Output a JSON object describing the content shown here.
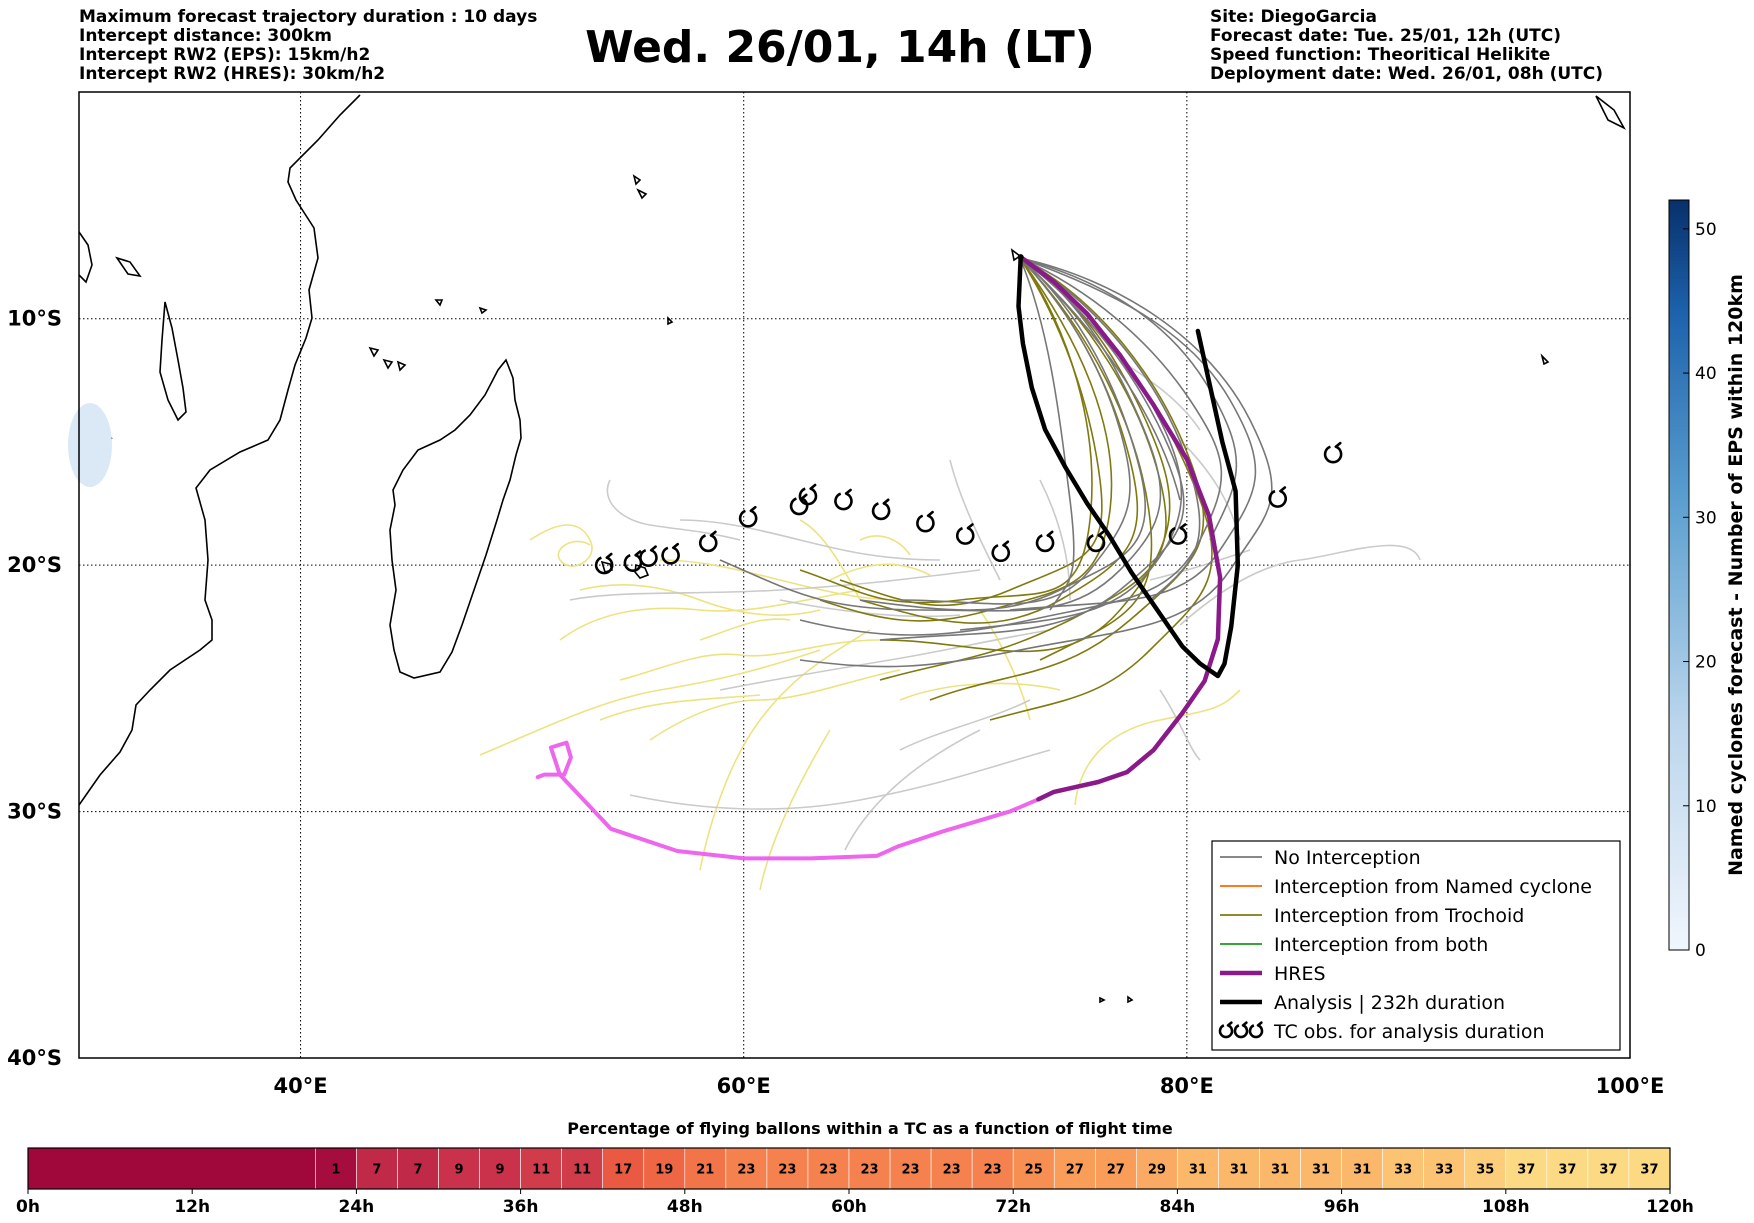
{
  "header": {
    "left_lines": [
      "Maximum forecast trajectory duration : 10 days",
      "Intercept distance: 300km",
      "Intercept RW2 (EPS):  15km/h2",
      "Intercept RW2 (HRES): 30km/h2"
    ],
    "title": "Wed. 26/01, 14h (LT)",
    "right_lines": [
      "Site: DiegoGarcia",
      "Forecast date: Tue. 25/01, 12h (UTC)",
      "Speed function: Theoritical Helikite",
      "Deployment date: Wed. 26/01, 08h (UTC)"
    ]
  },
  "colors": {
    "no_interception": "#777777",
    "named_cyclone": "#ff6600",
    "trochoid": "#7f7a10",
    "both": "#1a9a1a",
    "hres": "#8a1a8a",
    "analysis": "#000000",
    "hres_light": "#ee66ee",
    "faded_grey": "#c8c8c8",
    "faded_yellow": "#ece27a"
  },
  "legend": {
    "items": [
      {
        "label": "No Interception",
        "style": "no_interception"
      },
      {
        "label": "Interception from Named cyclone",
        "style": "named_cyclone"
      },
      {
        "label": "Interception from Trochoid",
        "style": "trochoid"
      },
      {
        "label": "Interception from both",
        "style": "both"
      },
      {
        "label": "HRES",
        "style": "hres"
      },
      {
        "label": "Analysis | 232h duration",
        "style": "analysis"
      },
      {
        "label": "TC obs. for analysis duration",
        "style": "tc"
      }
    ]
  },
  "chart_data": [
    {
      "type": "line",
      "title": "Wed. 26/01, 14h (LT)",
      "x_axis": {
        "range": [
          30,
          100
        ],
        "ticks": [
          40,
          60,
          80,
          100
        ],
        "tick_labels": [
          "40°E",
          "60°E",
          "80°E",
          "100°E"
        ]
      },
      "y_axis": {
        "range": [
          -40,
          -0.8
        ],
        "ticks": [
          -10,
          -20,
          -30,
          -40
        ],
        "tick_labels": [
          "10°S",
          "20°S",
          "30°S",
          "40°S"
        ]
      },
      "grid": true,
      "legend_position": "bottom-right",
      "series": [
        {
          "name": "Analysis | 232h duration",
          "x": [
            72.5,
            72.4,
            72.6,
            73.0,
            73.6,
            74.5,
            75.5,
            76.5,
            77.5,
            78.8,
            79.8,
            80.6,
            81.4,
            81.7,
            82.0,
            82.3,
            82.2,
            81.6,
            80.5
          ],
          "y": [
            -7.5,
            -9.5,
            -11.0,
            -12.8,
            -14.5,
            -16.0,
            -17.5,
            -18.8,
            -20.3,
            -22.0,
            -23.3,
            -24.0,
            -24.5,
            -24.0,
            -22.5,
            -20.0,
            -17.0,
            -15.0,
            -10.5
          ]
        },
        {
          "name": "HRES",
          "x": [
            72.5,
            74.0,
            75.5,
            77.0,
            78.5,
            80.0,
            81.0,
            81.5,
            81.4,
            80.8,
            79.8,
            78.5,
            77.3,
            76.0,
            75.0,
            74.0,
            73.3
          ],
          "y": [
            -7.5,
            -8.5,
            -9.8,
            -11.5,
            -13.5,
            -15.7,
            -18.0,
            -20.5,
            -23.0,
            -24.7,
            -26.0,
            -27.5,
            -28.4,
            -28.8,
            -29.0,
            -29.2,
            -29.5
          ]
        },
        {
          "name": "HRES continuation",
          "x": [
            73.3,
            72.0,
            69.0,
            67.0,
            66.0,
            63.0,
            60.0,
            57.0,
            54.0,
            51.7,
            51.3,
            52.0,
            52.2,
            51.9,
            51.0,
            50.7
          ],
          "y": [
            -29.5,
            -30.0,
            -30.8,
            -31.4,
            -31.8,
            -31.9,
            -31.9,
            -31.6,
            -30.7,
            -28.5,
            -27.4,
            -27.2,
            -27.8,
            -28.5,
            -28.5,
            -28.6
          ]
        }
      ],
      "tc_observations": {
        "x": [
          53.7,
          55.0,
          55.7,
          56.7,
          58.4,
          60.2,
          62.5,
          62.9,
          64.5,
          66.2,
          68.2,
          70.0,
          71.6,
          73.6,
          75.9,
          79.6,
          84.1,
          86.6
        ],
        "y": [
          -20.0,
          -19.9,
          -19.7,
          -19.6,
          -19.1,
          -18.1,
          -17.6,
          -17.2,
          -17.4,
          -17.8,
          -18.3,
          -18.8,
          -19.5,
          -19.1,
          -19.1,
          -18.8,
          -17.3,
          -15.5
        ]
      },
      "site": {
        "name": "DiegoGarcia",
        "x": 72.5,
        "y": -7.5
      }
    },
    {
      "type": "heatmap",
      "title": "",
      "ylabel": "Named cyclones forecast - Number of EPS within 120km",
      "ylim": [
        0,
        52
      ],
      "ticks": [
        0,
        10,
        20,
        30,
        40,
        50
      ],
      "orientation": "vertical"
    },
    {
      "type": "heatmap",
      "title": "Percentage of flying ballons within a TC as a function of flight time",
      "x_ticks": [
        "0h",
        "12h",
        "24h",
        "36h",
        "48h",
        "60h",
        "72h",
        "84h",
        "96h",
        "108h",
        "120h"
      ],
      "xlim": [
        0,
        120
      ],
      "values": [
        1,
        7,
        7,
        9,
        9,
        11,
        11,
        17,
        19,
        21,
        23,
        23,
        23,
        23,
        23,
        23,
        23,
        25,
        27,
        27,
        29,
        31,
        31,
        31,
        31,
        31,
        33,
        33,
        35,
        37,
        37,
        37,
        37
      ],
      "values_start_h": 21,
      "values_step_h": 3
    }
  ]
}
